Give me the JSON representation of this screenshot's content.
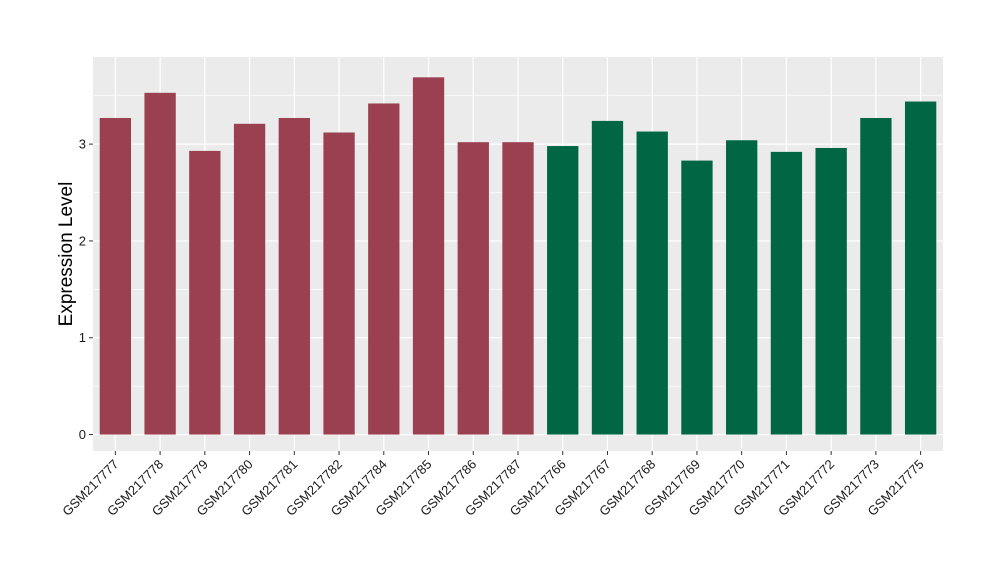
{
  "chart_data": {
    "type": "bar",
    "ylabel": "Expression Level",
    "xlabel": "",
    "ylim": [
      -0.17,
      3.9
    ],
    "yticks": [
      0,
      1,
      2,
      3
    ],
    "grid": true,
    "legend": "none",
    "categories": [
      "GSM217777",
      "GSM217778",
      "GSM217779",
      "GSM217780",
      "GSM217781",
      "GSM217782",
      "GSM217784",
      "GSM217785",
      "GSM217786",
      "GSM217787",
      "GSM217766",
      "GSM217767",
      "GSM217768",
      "GSM217769",
      "GSM217770",
      "GSM217771",
      "GSM217772",
      "GSM217773",
      "GSM217775"
    ],
    "values": [
      3.27,
      3.53,
      2.93,
      3.21,
      3.27,
      3.12,
      3.42,
      3.69,
      3.02,
      3.02,
      2.98,
      3.24,
      3.13,
      2.83,
      3.04,
      2.92,
      2.96,
      3.27,
      3.44
    ],
    "groups": [
      0,
      0,
      0,
      0,
      0,
      0,
      0,
      0,
      0,
      0,
      1,
      1,
      1,
      1,
      1,
      1,
      1,
      1,
      1
    ],
    "colors": [
      "#9b4050",
      "#006644"
    ],
    "panel_color": "#ebebeb",
    "grid_color": "#ffffff"
  }
}
